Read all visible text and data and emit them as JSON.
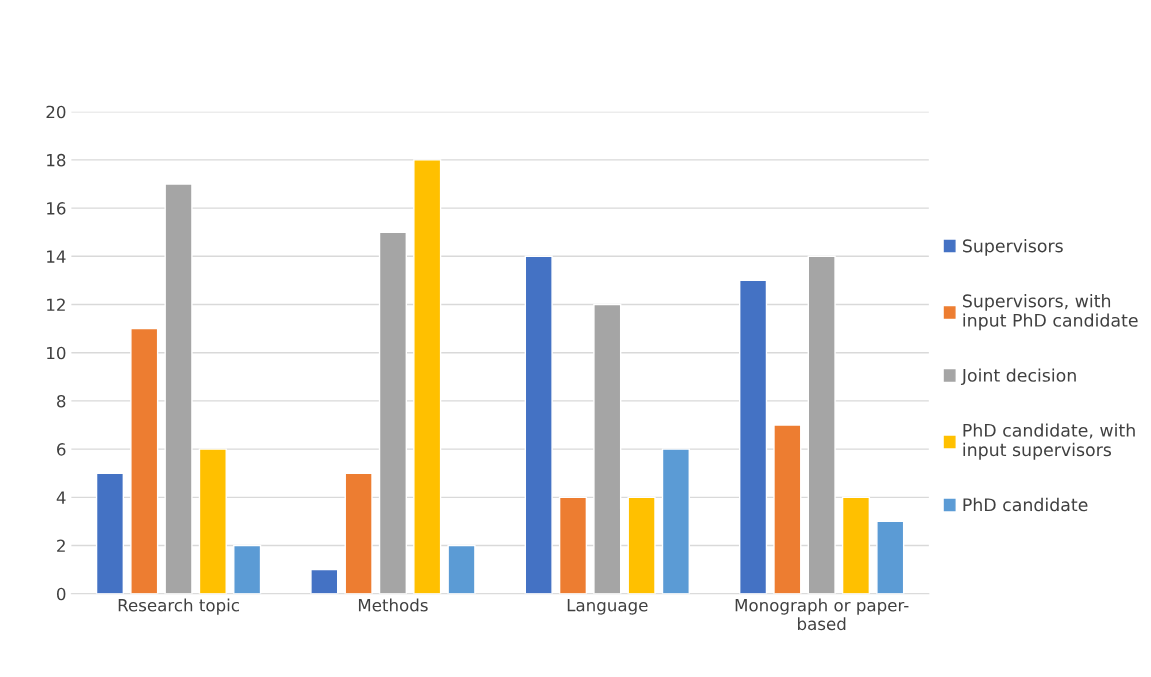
{
  "chart_data": {
    "type": "bar",
    "categories": [
      "Research topic",
      "Methods",
      "Language",
      "Monograph or paper-based"
    ],
    "series": [
      {
        "name": "Supervisors",
        "color": "#4472c4",
        "values": [
          5,
          1,
          14,
          13
        ]
      },
      {
        "name": "Supervisors, with input PhD candidate",
        "color": "#ed7d31",
        "values": [
          11,
          5,
          4,
          7
        ]
      },
      {
        "name": "Joint decision",
        "color": "#a5a5a5",
        "values": [
          17,
          15,
          12,
          14
        ]
      },
      {
        "name": "PhD candidate, with input supervisors",
        "color": "#ffc000",
        "values": [
          6,
          18,
          4,
          4
        ]
      },
      {
        "name": "PhD candidate",
        "color": "#5b9bd5",
        "values": [
          2,
          2,
          6,
          3
        ]
      }
    ],
    "ylim": [
      0,
      20
    ],
    "yticks": [
      0,
      2,
      4,
      6,
      8,
      10,
      12,
      14,
      16,
      18,
      20
    ],
    "grid": "y",
    "legend": "right"
  }
}
